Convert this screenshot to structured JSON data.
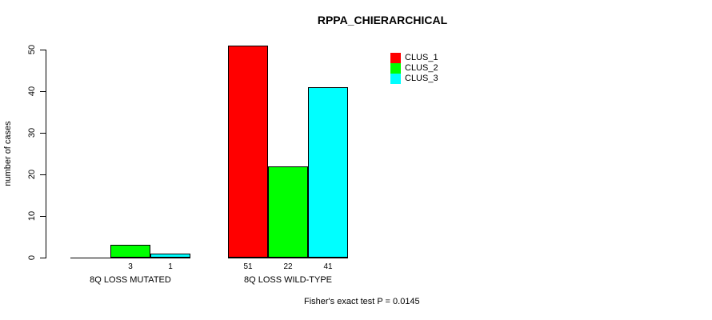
{
  "page": {
    "background_color": "#ffffff",
    "text_color": "#000000"
  },
  "chart_data": {
    "type": "bar",
    "title": "RPPA_CHIERARCHICAL",
    "xlabel": "",
    "ylabel": "number of cases",
    "categories": [
      "8Q LOSS MUTATED",
      "8Q LOSS WILD-TYPE"
    ],
    "series": [
      {
        "name": "CLUS_1",
        "color": "#ff0000",
        "values": [
          0,
          51
        ]
      },
      {
        "name": "CLUS_2",
        "color": "#00ff00",
        "values": [
          3,
          22
        ]
      },
      {
        "name": "CLUS_3",
        "color": "#00ffff",
        "values": [
          1,
          41
        ]
      }
    ],
    "bar_value_labels": [
      [
        "",
        "3",
        "1"
      ],
      [
        "51",
        "22",
        "41"
      ]
    ],
    "yticks": [
      0,
      10,
      20,
      30,
      40,
      50
    ],
    "ylim": [
      0,
      52
    ],
    "grid": false,
    "legend_position": "top-right",
    "bar_border_color": "#000000",
    "annotation": "Fisher's exact test P = 0.0145"
  }
}
